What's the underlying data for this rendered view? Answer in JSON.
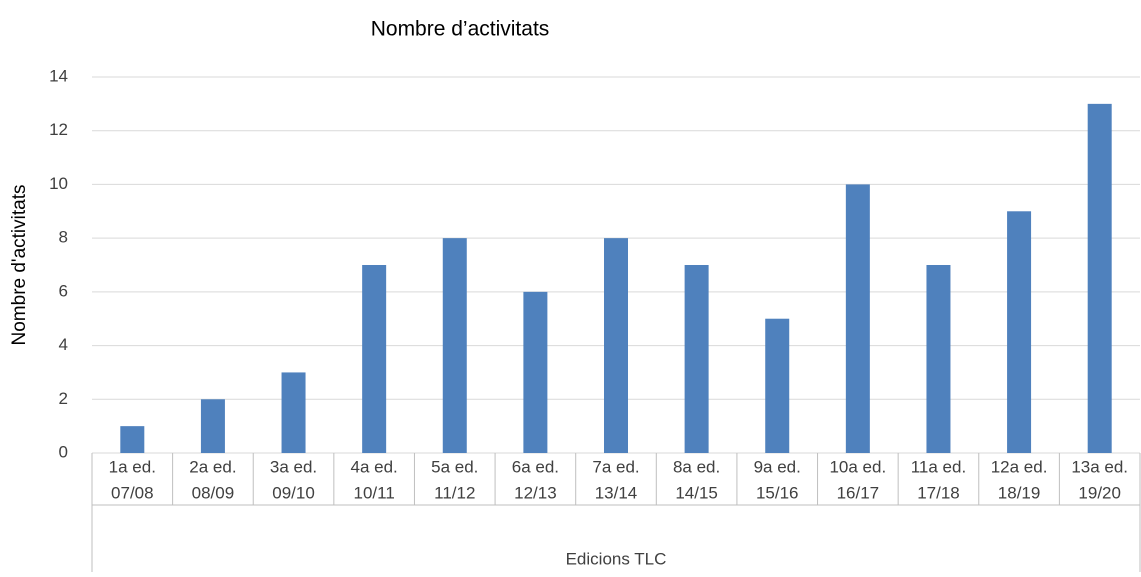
{
  "chart_data": {
    "type": "bar",
    "title": "Nombre d’activitats",
    "y_label": "Nombre d'activitats",
    "x_label": "Edicions TLC",
    "categories": [
      [
        "1a ed.",
        "07/08"
      ],
      [
        "2a ed.",
        "08/09"
      ],
      [
        "3a ed.",
        "09/10"
      ],
      [
        "4a ed.",
        "10/11"
      ],
      [
        "5a ed.",
        "11/12"
      ],
      [
        "6a ed.",
        "12/13"
      ],
      [
        "7a ed.",
        "13/14"
      ],
      [
        "8a ed.",
        "14/15"
      ],
      [
        "9a ed.",
        "15/16"
      ],
      [
        "10a ed.",
        "16/17"
      ],
      [
        "11a ed.",
        "17/18"
      ],
      [
        "12a ed.",
        "18/19"
      ],
      [
        "13a ed.",
        "19/20"
      ]
    ],
    "values": [
      1,
      2,
      3,
      7,
      8,
      6,
      8,
      7,
      5,
      10,
      7,
      9,
      13
    ],
    "color": "#4f81bd",
    "ylim": [
      0,
      14
    ],
    "yticks": [
      0,
      2,
      4,
      6,
      8,
      10,
      12,
      14
    ],
    "grid": true
  }
}
